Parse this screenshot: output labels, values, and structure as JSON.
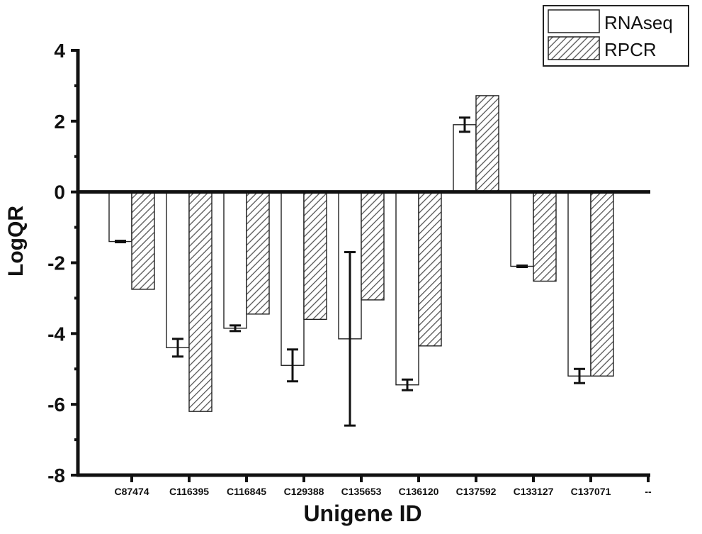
{
  "chart_data": {
    "type": "bar",
    "xlabel": "Unigene ID",
    "ylabel": "LogQR",
    "ylim": [
      -8,
      4
    ],
    "yticks": [
      4,
      2,
      0,
      -2,
      -4,
      -6,
      -8
    ],
    "categories": [
      "C87474",
      "C116395",
      "C116845",
      "C129388",
      "C135653",
      "C136120",
      "C137592",
      "C133127",
      "C137071",
      "--"
    ],
    "series": [
      {
        "name": "RNAseq",
        "pattern": "open",
        "values": [
          -1.4,
          -4.4,
          -3.85,
          -4.9,
          -4.15,
          -5.45,
          1.9,
          -2.1,
          -5.2,
          null
        ],
        "errors": [
          0.02,
          0.25,
          0.08,
          0.45,
          2.45,
          0.15,
          0.2,
          0.02,
          0.2,
          null
        ]
      },
      {
        "name": "RPCR",
        "pattern": "hatched",
        "values": [
          -2.75,
          -6.2,
          -3.45,
          -3.6,
          -3.05,
          -4.35,
          2.72,
          -2.52,
          -5.2,
          null
        ]
      }
    ],
    "legend": "top-right",
    "grid": false
  }
}
